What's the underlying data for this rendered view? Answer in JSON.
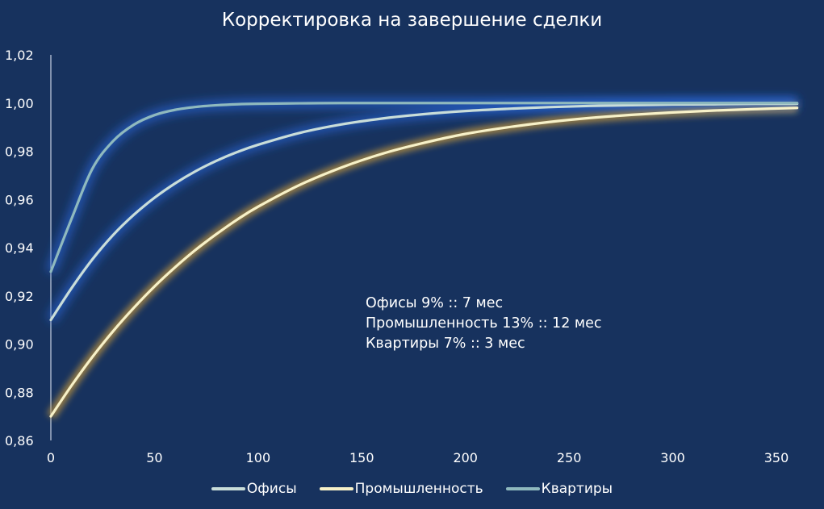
{
  "chart_data": {
    "type": "line",
    "title": "Корректировка на завершение сделки",
    "xlabel": "",
    "ylabel": "",
    "xlim": [
      0,
      360
    ],
    "ylim": [
      0.86,
      1.02
    ],
    "x_ticks": [
      "0",
      "50",
      "100",
      "150",
      "200",
      "250",
      "300",
      "350"
    ],
    "y_ticks": [
      "0,86",
      "0,88",
      "0,90",
      "0,92",
      "0,94",
      "0,96",
      "0,98",
      "1,00",
      "1,02"
    ],
    "grid": false,
    "legend_position": "bottom",
    "annotation": [
      "Офисы 9% :: 7 мес",
      "Промышленность 13% :: 12 мес",
      "Квартиры 7% :: 3 мес"
    ],
    "x": [
      0,
      10,
      20,
      30,
      40,
      50,
      60,
      70,
      80,
      90,
      100,
      120,
      140,
      160,
      180,
      200,
      220,
      240,
      260,
      280,
      300,
      320,
      340,
      360
    ],
    "series": [
      {
        "name": "Офисы",
        "color": "#c9ddd9",
        "values": [
          0.91,
          0.9232,
          0.9351,
          0.9452,
          0.9536,
          0.9607,
          0.9667,
          0.9718,
          0.9761,
          0.9797,
          0.9827,
          0.9876,
          0.9911,
          0.9936,
          0.9954,
          0.9967,
          0.9976,
          0.9983,
          0.9988,
          0.9991,
          0.9994,
          0.9995,
          0.9997,
          0.9997
        ]
      },
      {
        "name": "Промышленность",
        "color": "#f7f1c8",
        "values": [
          0.87,
          0.8828,
          0.8946,
          0.9053,
          0.915,
          0.9239,
          0.9319,
          0.9392,
          0.9457,
          0.9517,
          0.957,
          0.966,
          0.9732,
          0.979,
          0.9835,
          0.9872,
          0.9899,
          0.9921,
          0.9938,
          0.9951,
          0.9961,
          0.9969,
          0.9975,
          0.998
        ]
      },
      {
        "name": "Квартиры",
        "color": "#8fb9be",
        "values": [
          0.93,
          0.952,
          0.9727,
          0.9842,
          0.991,
          0.995,
          0.9972,
          0.9984,
          0.9991,
          0.9995,
          0.9997,
          0.9999,
          1.0,
          1.0,
          1.0,
          1.0,
          1.0,
          1.0,
          1.0,
          1.0,
          1.0,
          1.0,
          1.0,
          1.0
        ]
      }
    ]
  }
}
